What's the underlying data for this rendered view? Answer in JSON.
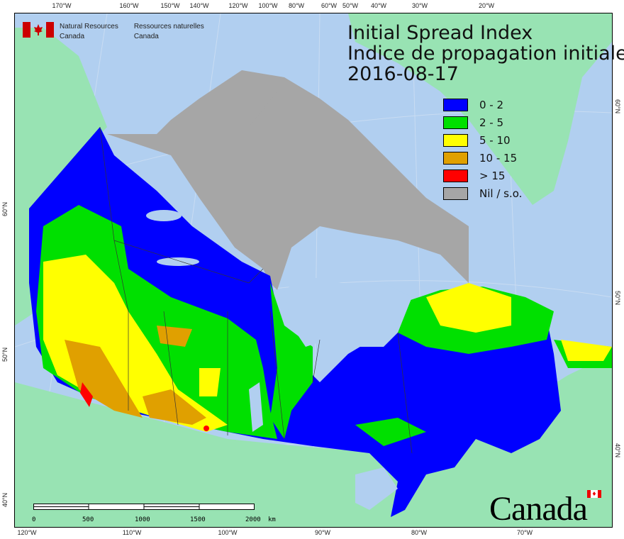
{
  "header": {
    "org_en_line1": "Natural Resources",
    "org_en_line2": "Canada",
    "org_fr_line1": "Ressources naturelles",
    "org_fr_line2": "Canada"
  },
  "title": {
    "en": "Initial Spread Index",
    "fr": "Indice de propagation initiale",
    "date": "2016-08-17"
  },
  "legend": [
    {
      "label": "0 - 2",
      "color": "#0000ff"
    },
    {
      "label": "2 - 5",
      "color": "#00e000"
    },
    {
      "label": "5 - 10",
      "color": "#ffff00"
    },
    {
      "label": "10 - 15",
      "color": "#e0a000"
    },
    {
      "label": "> 15",
      "color": "#ff0000"
    },
    {
      "label": "Nil / s.o.",
      "color": "#a6a6a6"
    }
  ],
  "colors": {
    "ocean": "#b1cff0",
    "land": "#98e3b3",
    "nil": "#a6a6a6"
  },
  "graticule": {
    "top": [
      "170°W",
      "160°W",
      "150°W",
      "140°W",
      "120°W",
      "100°W",
      "80°W",
      "60°W",
      "50°W",
      "40°W",
      "30°W",
      "20°W"
    ],
    "bottom": [
      "120°W",
      "110°W",
      "100°W",
      "90°W",
      "80°W",
      "70°W"
    ],
    "left": [
      "60°N",
      "50°N",
      "40°N"
    ],
    "right": [
      "60°N",
      "50°N",
      "40°N"
    ]
  },
  "scalebar": {
    "labels": [
      "0",
      "500",
      "1000",
      "1500",
      "2000"
    ],
    "unit": "km"
  },
  "wordmark": "Canada"
}
